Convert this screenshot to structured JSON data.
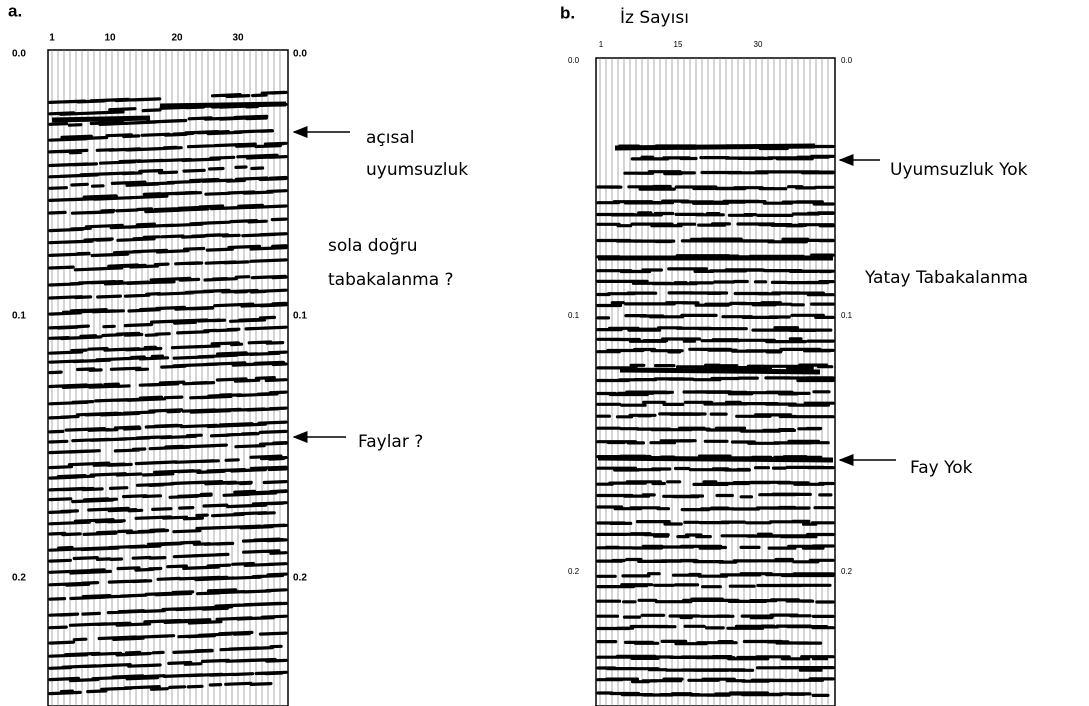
{
  "panels": [
    {
      "label": "a.",
      "trace_ticks": [
        "1",
        "10",
        "20",
        "30"
      ],
      "time_ticks": [
        "0.0",
        "0.1",
        "0.2"
      ],
      "annotations": [
        {
          "lines": [
            "açısal",
            "uyumsuzluk"
          ]
        },
        {
          "lines": [
            "sola doğru",
            "tabakalanma ?"
          ]
        },
        {
          "lines": [
            "Faylar ?"
          ]
        }
      ]
    },
    {
      "label": "b.",
      "axis_title": "İz Sayısı",
      "trace_ticks": [
        "1",
        "15",
        "30"
      ],
      "time_ticks": [
        "0.0",
        "0.1",
        "0.2"
      ],
      "annotations": [
        {
          "lines": [
            "Uyumsuzluk Yok"
          ]
        },
        {
          "lines": [
            "Yatay Tabakalanma"
          ]
        },
        {
          "lines": [
            "Fay Yok"
          ]
        }
      ]
    }
  ]
}
